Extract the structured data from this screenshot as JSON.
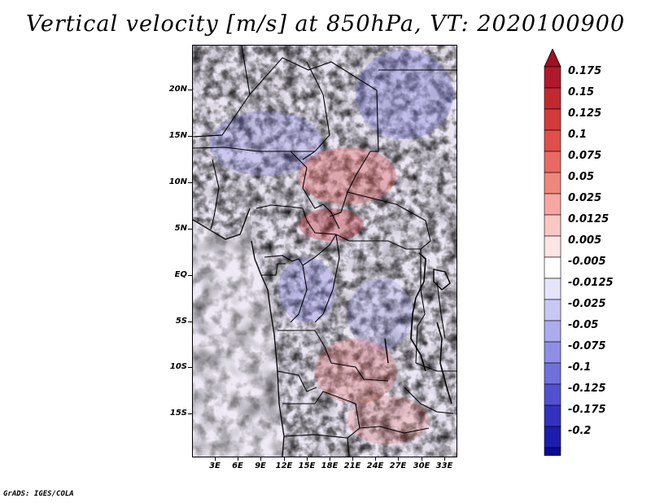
{
  "title": "Vertical velocity [m/s] at 850hPa, VT: 2020100900",
  "credit": "GrADS: IGES/COLA",
  "map": {
    "lat_labels": [
      "20N",
      "15N",
      "10N",
      "5N",
      "EQ",
      "5S",
      "10S",
      "15S"
    ],
    "lon_labels": [
      "3E",
      "6E",
      "9E",
      "12E",
      "15E",
      "18E",
      "21E",
      "24E",
      "27E",
      "30E",
      "33E"
    ]
  },
  "colorbar": {
    "labels": [
      "0.175",
      "0.15",
      "0.125",
      "0.1",
      "0.075",
      "0.05",
      "0.025",
      "0.0125",
      "0.005",
      "-0.005",
      "-0.0125",
      "-0.025",
      "-0.05",
      "-0.075",
      "-0.1",
      "-0.125",
      "-0.175",
      "-0.2"
    ],
    "colors": [
      "#b2182b",
      "#c3282f",
      "#d43a39",
      "#e04f4a",
      "#e96a62",
      "#f0877e",
      "#f5a7a0",
      "#f9c8c4",
      "#fce5e3",
      "#ffffff",
      "#e4e4fb",
      "#c8c8f5",
      "#ababee",
      "#8e8ee6",
      "#7070dc",
      "#5151cf",
      "#3232bf",
      "#1c1cad",
      "#0b0b96"
    ],
    "arrow_top_color": "#a01020",
    "arrow_bottom_color": "#080880"
  }
}
